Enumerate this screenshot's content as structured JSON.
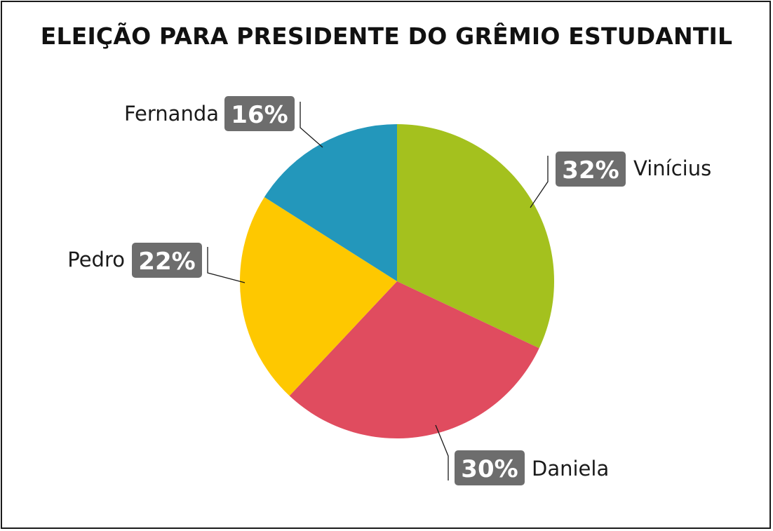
{
  "chart_data": {
    "type": "pie",
    "title": "ELEIÇÃO PARA PRESIDENTE DO GRÊMIO ESTUDANTIL",
    "slices": [
      {
        "name": "Vinícius",
        "value": 32,
        "label": "32%",
        "color": "#A4C11E"
      },
      {
        "name": "Daniela",
        "value": 30,
        "label": "30%",
        "color": "#E04C5F"
      },
      {
        "name": "Pedro",
        "value": 22,
        "label": "22%",
        "color": "#FEC800"
      },
      {
        "name": "Fernanda",
        "value": 16,
        "label": "16%",
        "color": "#2397BB"
      }
    ],
    "label_box_color": "#6D6D6D"
  }
}
